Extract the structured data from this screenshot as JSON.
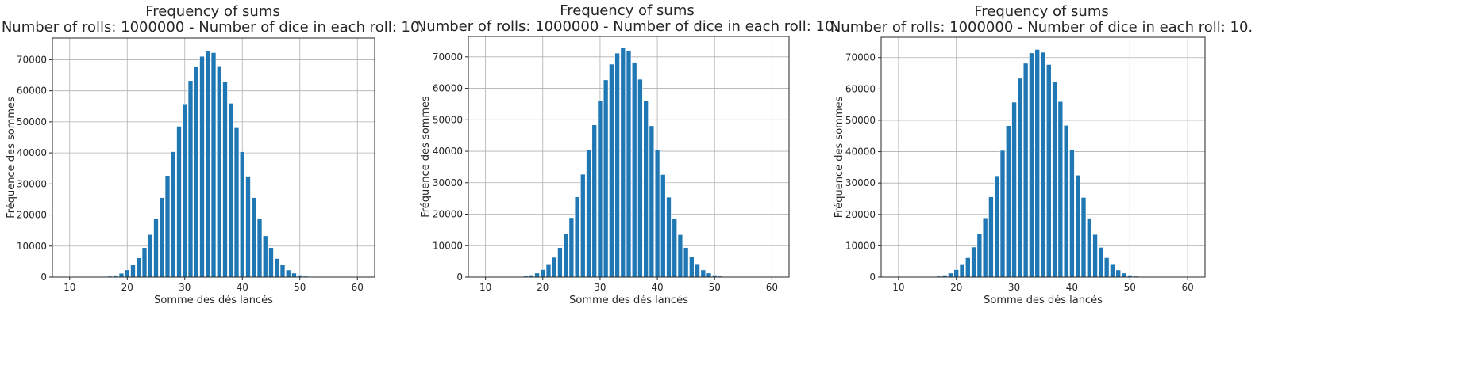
{
  "chart_data": [
    {
      "type": "bar",
      "title": "Frequency of sums",
      "subtitle": "Number of rolls: 1000000 - Number of dice in each roll: 10.",
      "xlabel": "Somme des dés lancés",
      "ylabel": "Fréquence des sommes",
      "xlim": [
        7,
        63
      ],
      "ylim": [
        0,
        77000
      ],
      "xticks": [
        10,
        20,
        30,
        40,
        50,
        60
      ],
      "yticks": [
        0,
        10000,
        20000,
        30000,
        40000,
        50000,
        60000,
        70000
      ],
      "grid": true,
      "bar_color": "#1f77b4",
      "x": [
        10,
        11,
        12,
        13,
        14,
        15,
        16,
        17,
        18,
        19,
        20,
        21,
        22,
        23,
        24,
        25,
        26,
        27,
        28,
        29,
        30,
        31,
        32,
        33,
        34,
        35,
        36,
        37,
        38,
        39,
        40,
        41,
        42,
        43,
        44,
        45,
        46,
        47,
        48,
        49,
        50,
        51,
        52,
        53,
        54,
        55,
        56,
        57,
        58,
        59,
        60
      ],
      "values": [
        0,
        0,
        0,
        0,
        5,
        20,
        90,
        280,
        620,
        1250,
        2350,
        3900,
        6200,
        9500,
        13700,
        18800,
        25600,
        32700,
        40400,
        48600,
        55800,
        63300,
        67800,
        71100,
        73000,
        72300,
        68000,
        62900,
        56000,
        48100,
        40400,
        32500,
        25600,
        18700,
        13300,
        9500,
        6000,
        3900,
        2300,
        1300,
        650,
        280,
        100,
        25,
        5,
        0,
        0,
        0,
        0,
        0,
        0
      ]
    },
    {
      "type": "bar",
      "title": "Frequency of sums",
      "subtitle": "Number of rolls: 1000000 - Number of dice in each roll: 10.",
      "xlabel": "Somme des dés lancés",
      "ylabel": "Fréquence des sommes",
      "xlim": [
        7,
        63
      ],
      "ylim": [
        0,
        76500
      ],
      "xticks": [
        10,
        20,
        30,
        40,
        50,
        60
      ],
      "yticks": [
        0,
        10000,
        20000,
        30000,
        40000,
        50000,
        60000,
        70000
      ],
      "grid": true,
      "bar_color": "#1f77b4",
      "x": [
        10,
        11,
        12,
        13,
        14,
        15,
        16,
        17,
        18,
        19,
        20,
        21,
        22,
        23,
        24,
        25,
        26,
        27,
        28,
        29,
        30,
        31,
        32,
        33,
        34,
        35,
        36,
        37,
        38,
        39,
        40,
        41,
        42,
        43,
        44,
        45,
        46,
        47,
        48,
        49,
        50,
        51,
        52,
        53,
        54,
        55,
        56,
        57,
        58,
        59,
        60
      ],
      "values": [
        0,
        0,
        0,
        0,
        5,
        20,
        90,
        300,
        650,
        1300,
        2400,
        3950,
        6300,
        9400,
        13700,
        18900,
        25500,
        32700,
        40600,
        48400,
        56000,
        62700,
        67700,
        71200,
        72900,
        72000,
        68300,
        62900,
        56000,
        48100,
        40400,
        32600,
        25400,
        18700,
        13500,
        9400,
        6400,
        4000,
        2300,
        1300,
        650,
        300,
        100,
        25,
        5,
        0,
        0,
        0,
        0,
        0,
        0
      ]
    },
    {
      "type": "bar",
      "title": "Frequency of sums",
      "subtitle": "Number of rolls: 1000000 - Number of dice in each roll: 10.",
      "xlabel": "Somme des dés lancés",
      "ylabel": "Fréquence des sommes",
      "xlim": [
        7,
        63
      ],
      "ylim": [
        0,
        76500
      ],
      "xticks": [
        10,
        20,
        30,
        40,
        50,
        60
      ],
      "yticks": [
        0,
        10000,
        20000,
        30000,
        40000,
        50000,
        60000,
        70000
      ],
      "grid": true,
      "bar_color": "#1f77b4",
      "x": [
        10,
        11,
        12,
        13,
        14,
        15,
        16,
        17,
        18,
        19,
        20,
        21,
        22,
        23,
        24,
        25,
        26,
        27,
        28,
        29,
        30,
        31,
        32,
        33,
        34,
        35,
        36,
        37,
        38,
        39,
        40,
        41,
        42,
        43,
        44,
        45,
        46,
        47,
        48,
        49,
        50,
        51,
        52,
        53,
        54,
        55,
        56,
        57,
        58,
        59,
        60
      ],
      "values": [
        0,
        0,
        0,
        0,
        5,
        20,
        90,
        290,
        640,
        1300,
        2400,
        3950,
        6200,
        9600,
        13800,
        18900,
        25600,
        32300,
        40400,
        48300,
        55800,
        63400,
        68200,
        71500,
        72600,
        71700,
        67800,
        62400,
        56000,
        48400,
        40600,
        32500,
        25400,
        18800,
        13600,
        9500,
        6200,
        4000,
        2300,
        1300,
        630,
        280,
        100,
        25,
        5,
        0,
        0,
        0,
        0,
        0,
        0
      ]
    }
  ]
}
